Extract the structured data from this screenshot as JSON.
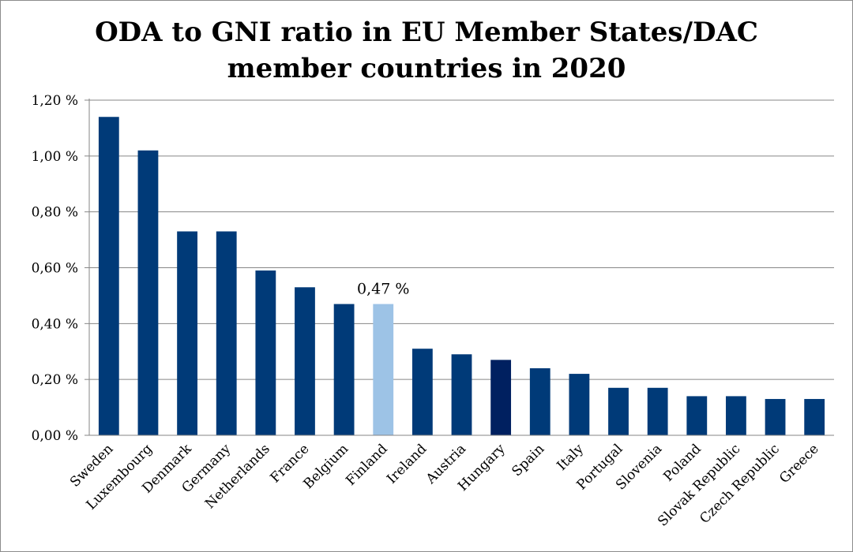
{
  "chart_data": {
    "type": "bar",
    "title_lines": [
      "ODA to GNI ratio in EU Member States/DAC",
      "member countries in 2020"
    ],
    "categories": [
      "Sweden",
      "Luxembourg",
      "Denmark",
      "Germany",
      "Netherlands",
      "France",
      "Belgium",
      "Finland",
      "Ireland",
      "Austria",
      "Hungary",
      "Spain",
      "Italy",
      "Portugal",
      "Slovenia",
      "Poland",
      "Slovak Republic",
      "Czech Republic",
      "Greece"
    ],
    "values": [
      1.14,
      1.02,
      0.73,
      0.73,
      0.59,
      0.53,
      0.47,
      0.47,
      0.31,
      0.29,
      0.27,
      0.24,
      0.22,
      0.17,
      0.17,
      0.14,
      0.14,
      0.13,
      0.13
    ],
    "bar_colors": [
      "#003a78",
      "#003a78",
      "#003a78",
      "#003a78",
      "#003a78",
      "#003a78",
      "#003a78",
      "#9dc3e6",
      "#003a78",
      "#003a78",
      "#002060",
      "#003a78",
      "#003a78",
      "#003a78",
      "#003a78",
      "#003a78",
      "#003a78",
      "#003a78",
      "#003a78"
    ],
    "data_labels": [
      {
        "category": "Finland",
        "text": "0,47 %"
      }
    ],
    "y_ticks": [
      "0,00 %",
      "0,20 %",
      "0,40 %",
      "0,60 %",
      "0,80 %",
      "1,00 %",
      "1,20 %"
    ],
    "ylim": [
      0,
      1.2
    ],
    "y_step": 0.2,
    "xlabel": "",
    "ylabel": "",
    "grid": true,
    "legend": "none"
  }
}
